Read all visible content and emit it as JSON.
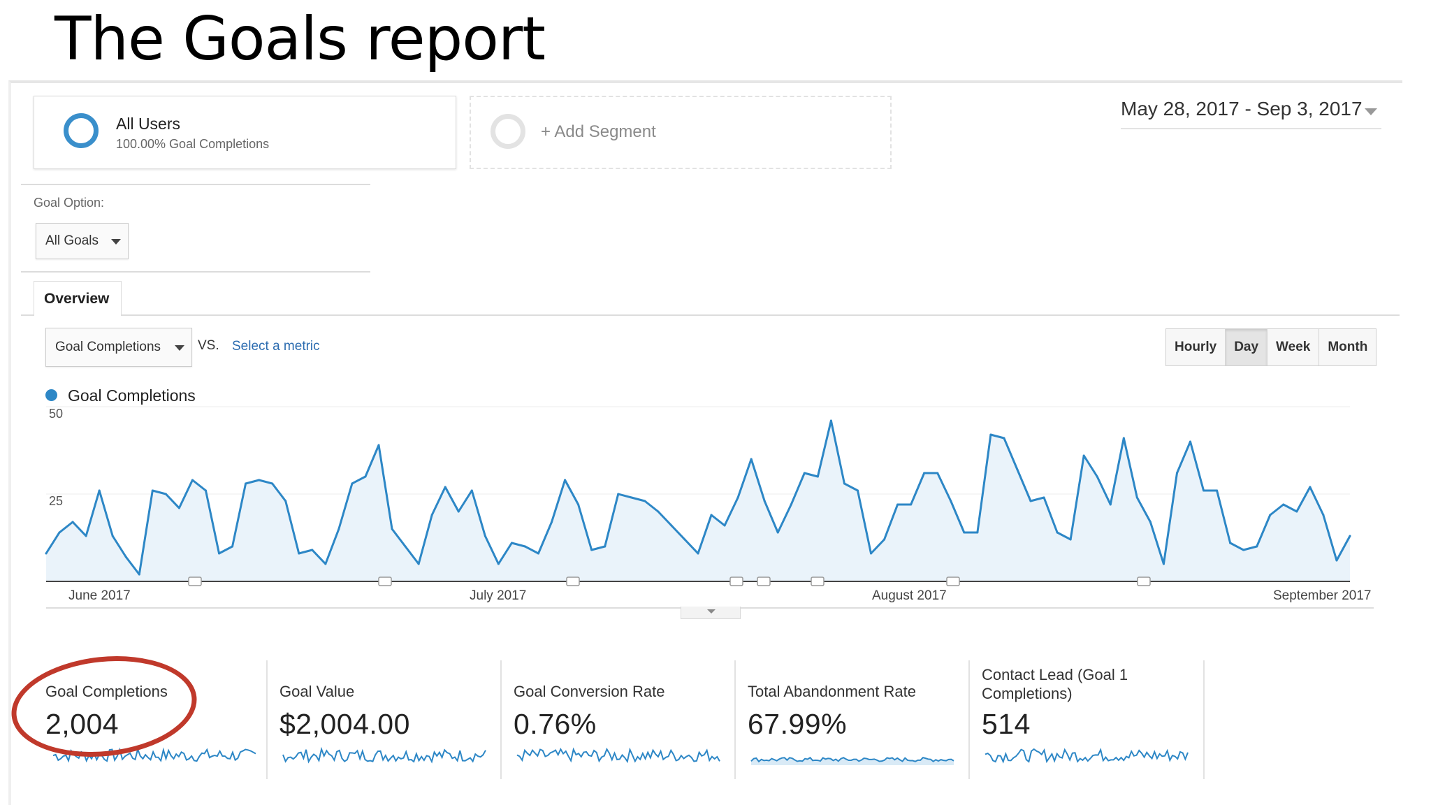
{
  "slide_title": "The Goals report",
  "segments": {
    "all_users": {
      "name": "All Users",
      "sub": "100.00% Goal Completions"
    },
    "add_segment": "+ Add Segment"
  },
  "date_range": "May 28, 2017 - Sep 3, 2017",
  "goal_option": {
    "label": "Goal Option:",
    "value": "All Goals"
  },
  "tabs": [
    "Overview"
  ],
  "metric_selector": {
    "value": "Goal Completions",
    "vs": "VS.",
    "select_metric": "Select a metric"
  },
  "granularity": {
    "options": [
      "Hourly",
      "Day",
      "Week",
      "Month"
    ],
    "selected": "Day"
  },
  "colors": {
    "series": "#2d87c6",
    "area": "#eaf3fa",
    "highlight": "#c0392b",
    "link": "#2c6cb0"
  },
  "chart_data": {
    "type": "area",
    "series": [
      {
        "name": "Goal Completions",
        "values": [
          8,
          14,
          17,
          13,
          26,
          13,
          7,
          2,
          26,
          25,
          21,
          29,
          26,
          8,
          10,
          28,
          29,
          28,
          23,
          8,
          9,
          5,
          15,
          28,
          30,
          39,
          15,
          10,
          5,
          19,
          27,
          20,
          26,
          13,
          5,
          11,
          10,
          8,
          17,
          29,
          22,
          9,
          10,
          25,
          24,
          23,
          20,
          16,
          12,
          8,
          19,
          16,
          24,
          35,
          23,
          14,
          22,
          31,
          30,
          46,
          28,
          26,
          8,
          12,
          22,
          22,
          31,
          31,
          23,
          14,
          14,
          42,
          41,
          32,
          23,
          24,
          14,
          12,
          36,
          30,
          22,
          41,
          24,
          17,
          5,
          31,
          40,
          26,
          26,
          11,
          9,
          10,
          19,
          22,
          20,
          27,
          19,
          6,
          13
        ]
      }
    ],
    "ylim": [
      0,
      50
    ],
    "yticks": [
      25,
      50
    ],
    "xticks": [
      "June 2017",
      "July 2017",
      "August 2017",
      "September 2017"
    ]
  },
  "kpis": [
    {
      "label": "Goal Completions",
      "value": "2,004"
    },
    {
      "label": "Goal Value",
      "value": "$2,004.00"
    },
    {
      "label": "Goal Conversion Rate",
      "value": "0.76%"
    },
    {
      "label": "Total Abandonment Rate",
      "value": "67.99%"
    },
    {
      "label": "Contact Lead (Goal 1 Completions)",
      "value": "514"
    }
  ]
}
